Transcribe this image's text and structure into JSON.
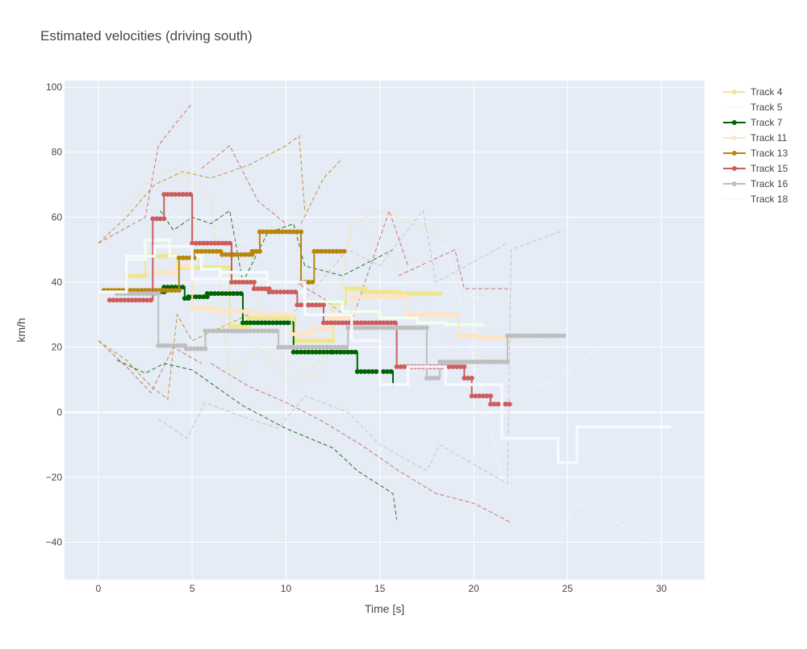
{
  "chart_data": {
    "type": "line",
    "title": "Estimated velocities (driving south)",
    "xlabel": "Time [s]",
    "ylabel": "km/h",
    "xlim": [
      -1.8,
      32.3
    ],
    "ylim": [
      -51.5,
      102
    ],
    "xticks": [
      0,
      5,
      10,
      15,
      20,
      25,
      30
    ],
    "yticks": [
      -40,
      -20,
      0,
      20,
      40,
      60,
      80,
      100
    ],
    "ytick_labels": [
      "−40",
      "−20",
      "0",
      "20",
      "40",
      "60",
      "80",
      "100"
    ],
    "grid": true,
    "legend_position": "top-right",
    "series": [
      {
        "name": "Track 4",
        "color": "#F0E68C",
        "steps": [
          [
            1.5,
            42
          ],
          [
            2.5,
            48
          ],
          [
            4.2,
            44.5
          ],
          [
            7,
            26.5
          ],
          [
            8,
            29
          ],
          [
            10.5,
            22
          ],
          [
            12.5,
            33.5
          ],
          [
            13.2,
            38
          ],
          [
            14.2,
            37
          ],
          [
            16,
            36.5
          ],
          [
            18.2,
            36.5
          ]
        ]
      },
      {
        "name": "Track 5",
        "color": "#F0FFF0",
        "steps": [
          [
            1.5,
            47
          ],
          [
            2.5,
            53
          ],
          [
            3.8,
            48
          ],
          [
            5.5,
            44
          ],
          [
            6.5,
            41
          ],
          [
            9,
            37
          ],
          [
            11,
            34
          ],
          [
            13,
            31
          ],
          [
            15,
            29
          ],
          [
            17,
            27.5
          ],
          [
            18.5,
            27
          ],
          [
            20.5,
            26.5
          ]
        ]
      },
      {
        "name": "Track 7",
        "color": "#006400",
        "steps": [
          [
            3.3,
            37
          ],
          [
            3.5,
            38.5
          ],
          [
            4.6,
            35
          ],
          [
            4.8,
            35.5
          ],
          [
            5.8,
            36.5
          ],
          [
            7.7,
            27.5
          ],
          [
            10.4,
            18.5
          ],
          [
            12.5,
            18.5
          ],
          [
            13.8,
            12.5
          ],
          [
            15.7,
            8
          ]
        ]
      },
      {
        "name": "Track 11",
        "color": "#FFE4C4",
        "steps": [
          [
            3,
            43
          ],
          [
            4.2,
            45
          ],
          [
            5,
            32
          ],
          [
            6.2,
            31
          ],
          [
            8.5,
            30
          ],
          [
            10.3,
            24
          ],
          [
            11.3,
            25.5
          ],
          [
            12.3,
            29
          ],
          [
            13.5,
            35.5
          ],
          [
            16.5,
            30
          ],
          [
            19.2,
            23.5
          ],
          [
            20.2,
            23
          ],
          [
            22,
            23
          ]
        ]
      },
      {
        "name": "Track 13",
        "color": "#B8860B",
        "steps": [
          [
            0.3,
            37.5
          ],
          [
            4.3,
            47.5
          ],
          [
            5.1,
            49.5
          ],
          [
            6.6,
            48.5
          ],
          [
            8.2,
            49.5
          ],
          [
            8.6,
            55.5
          ],
          [
            10.8,
            40
          ],
          [
            11.5,
            49.5
          ],
          [
            13.2,
            49.5
          ]
        ]
      },
      {
        "name": "Track 15",
        "color": "#CD5C5C",
        "steps": [
          [
            0.6,
            34.5
          ],
          [
            2.9,
            59.5
          ],
          [
            3.5,
            67
          ],
          [
            5,
            52
          ],
          [
            7.1,
            40
          ],
          [
            8.3,
            38
          ],
          [
            9.1,
            37
          ],
          [
            10.6,
            33
          ],
          [
            12,
            27.5
          ],
          [
            15.9,
            14
          ],
          [
            19.5,
            10.5
          ],
          [
            19.9,
            5
          ],
          [
            20.9,
            2.5
          ],
          [
            22,
            2
          ]
        ]
      },
      {
        "name": "Track 16",
        "color": "#BEBEBE",
        "steps": [
          [
            1,
            36.5
          ],
          [
            3.2,
            20.5
          ],
          [
            4.7,
            19.5
          ],
          [
            5.7,
            25
          ],
          [
            9.6,
            20
          ],
          [
            13.3,
            26
          ],
          [
            17.5,
            10.5
          ],
          [
            18.2,
            15.5
          ],
          [
            21.8,
            23.5
          ],
          [
            24.8,
            23.5
          ]
        ]
      },
      {
        "name": "Track 18",
        "color": "#F8F8FF",
        "steps": [
          [
            0,
            37
          ],
          [
            1.5,
            48
          ],
          [
            3,
            51
          ],
          [
            5,
            41
          ],
          [
            6.5,
            43
          ],
          [
            9,
            40
          ],
          [
            11,
            30
          ],
          [
            13.5,
            22
          ],
          [
            15,
            8.5
          ],
          [
            16.5,
            14
          ],
          [
            18.5,
            8.5
          ],
          [
            21.5,
            -8
          ],
          [
            24.5,
            -15.5
          ],
          [
            25.5,
            -4.5
          ],
          [
            30.5,
            -4.5
          ]
        ]
      }
    ]
  }
}
